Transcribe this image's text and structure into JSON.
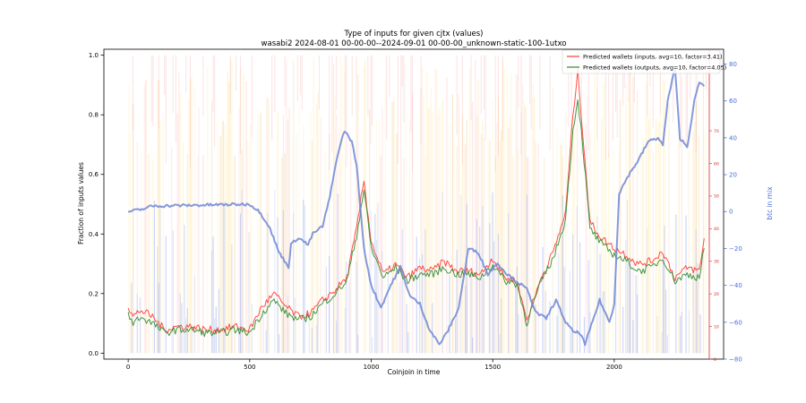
{
  "chart_data": {
    "type": "line",
    "title": "Type of inputs for given cjtx (values)",
    "subtitle": "wasabi2 2024-08-01 00-00-00--2024-09-01 00-00-00_unknown-static-100-1utxo",
    "xlabel": "Coinjoin in time",
    "ylabel": "Fraction of inputs values",
    "y2label": "btc in mix",
    "xlim": [
      -100,
      2450
    ],
    "ylim": [
      -0.02,
      1.02
    ],
    "y2lim": [
      -80,
      88
    ],
    "y3lim": [
      0,
      95
    ],
    "x_ticks": [
      0,
      500,
      1000,
      1500,
      2000
    ],
    "y_ticks": [
      0.0,
      0.2,
      0.4,
      0.6,
      0.8,
      1.0
    ],
    "y2_ticks": [
      -80,
      -60,
      -40,
      -20,
      0,
      20,
      40,
      60,
      80
    ],
    "y3_ticks": [
      0,
      10,
      20,
      30,
      40,
      50,
      60,
      70
    ],
    "n_coinjoins": 2380,
    "series": [
      {
        "name": "Predicted wallets (inputs, avg=10, factor=3.41)",
        "axis": "y3",
        "color": "#ff3b30",
        "x": [
          0,
          20,
          50,
          100,
          150,
          200,
          260,
          320,
          380,
          440,
          500,
          550,
          600,
          650,
          700,
          750,
          800,
          850,
          900,
          940,
          970,
          1000,
          1050,
          1100,
          1150,
          1200,
          1250,
          1300,
          1350,
          1400,
          1450,
          1500,
          1550,
          1600,
          1640,
          1700,
          1750,
          1800,
          1830,
          1850,
          1870,
          1900,
          1950,
          2000,
          2050,
          2100,
          2150,
          2200,
          2250,
          2300,
          2350,
          2370
        ],
        "values": [
          16,
          13,
          15,
          13,
          9,
          10,
          10,
          9,
          9,
          10,
          9,
          16,
          20,
          16,
          13,
          14,
          18,
          21,
          25,
          40,
          55,
          36,
          26,
          29,
          25,
          28,
          27,
          30,
          27,
          27,
          26,
          31,
          25,
          24,
          12,
          25,
          33,
          45,
          75,
          88,
          70,
          42,
          37,
          34,
          32,
          29,
          30,
          33,
          25,
          28,
          27,
          37
        ]
      },
      {
        "name": "Predicted wallets (outputs, avg=10, factor=4.05)",
        "axis": "y3",
        "color": "#2e8b2e",
        "x": [
          0,
          20,
          50,
          100,
          150,
          200,
          260,
          320,
          380,
          440,
          500,
          550,
          600,
          650,
          700,
          750,
          800,
          850,
          900,
          940,
          970,
          1000,
          1050,
          1100,
          1150,
          1200,
          1250,
          1300,
          1350,
          1400,
          1450,
          1500,
          1550,
          1600,
          1640,
          1700,
          1750,
          1800,
          1830,
          1850,
          1870,
          1900,
          1950,
          2000,
          2050,
          2100,
          2150,
          2200,
          2250,
          2300,
          2350,
          2370
        ],
        "values": [
          14,
          11,
          13,
          11,
          8,
          9,
          9,
          8,
          8,
          9,
          8,
          14,
          18,
          14,
          12,
          13,
          17,
          20,
          24,
          38,
          52,
          34,
          25,
          28,
          24,
          26,
          26,
          28,
          26,
          26,
          25,
          29,
          24,
          23,
          11,
          24,
          31,
          43,
          70,
          80,
          66,
          40,
          35,
          32,
          30,
          27,
          28,
          31,
          24,
          26,
          25,
          34
        ]
      },
      {
        "name": "btc in mix",
        "axis": "y2",
        "color": "#6f87d6",
        "x": [
          0,
          50,
          100,
          500,
          540,
          580,
          620,
          660,
          670,
          700,
          740,
          760,
          800,
          830,
          860,
          890,
          920,
          940,
          970,
          1000,
          1040,
          1080,
          1120,
          1160,
          1200,
          1240,
          1280,
          1310,
          1340,
          1360,
          1400,
          1440,
          1480,
          1520,
          1560,
          1600,
          1640,
          1680,
          1720,
          1760,
          1800,
          1830,
          1860,
          1880,
          1900,
          1940,
          1980,
          2000,
          2020,
          2060,
          2100,
          2140,
          2180,
          2200,
          2220,
          2250,
          2270,
          2300,
          2330,
          2350,
          2370
        ],
        "values": [
          0,
          1,
          3,
          4,
          0,
          -8,
          -22,
          -30,
          -18,
          -14,
          -18,
          -12,
          -8,
          8,
          30,
          44,
          38,
          25,
          -20,
          -40,
          -52,
          -40,
          -30,
          -46,
          -50,
          -64,
          -72,
          -66,
          -58,
          -52,
          -20,
          -22,
          -34,
          -28,
          -34,
          -38,
          -42,
          -55,
          -58,
          -48,
          -60,
          -65,
          -66,
          -72,
          -64,
          -48,
          -60,
          -50,
          10,
          20,
          28,
          38,
          40,
          36,
          60,
          78,
          40,
          35,
          60,
          70,
          68
        ]
      }
    ]
  }
}
